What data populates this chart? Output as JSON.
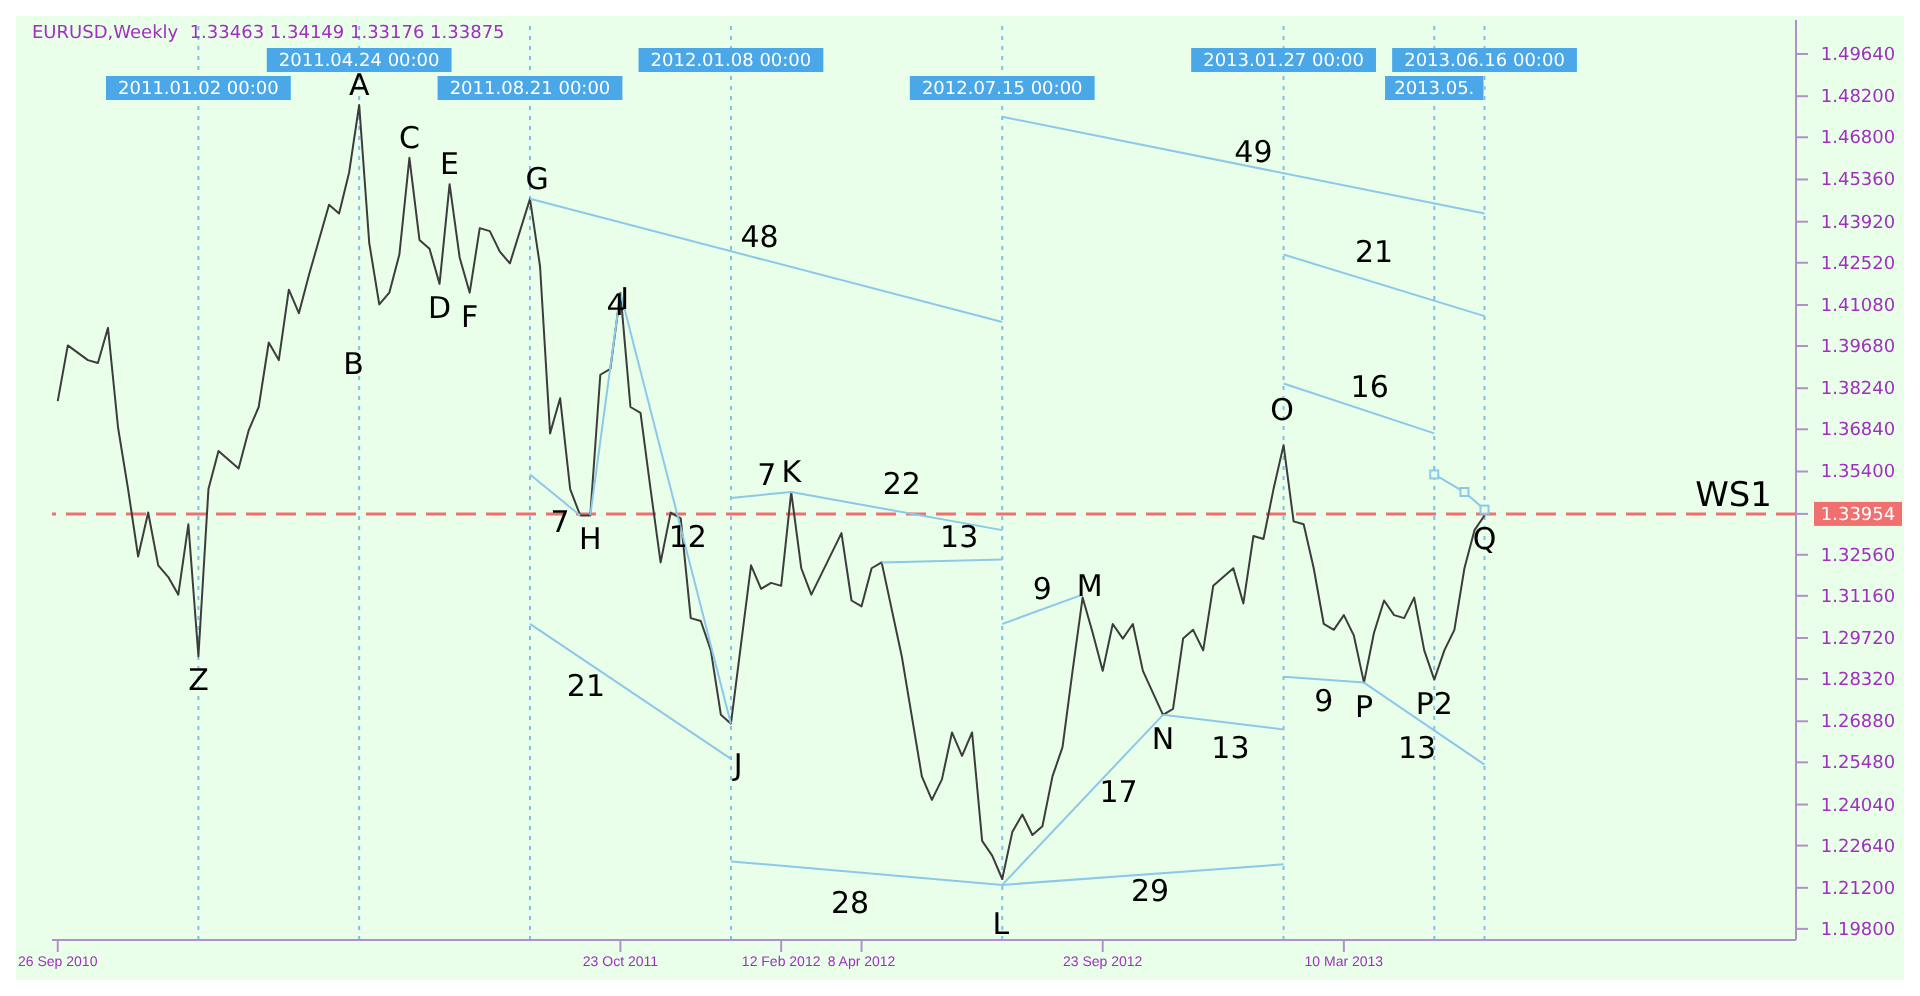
{
  "chart_data": {
    "type": "line",
    "title": "EURUSD,Weekly  1.33463 1.34149 1.33176 1.33875",
    "xlim": [
      "2010-09-22",
      "2014-01-19"
    ],
    "xticks": [
      {
        "value": "2010-09-26",
        "label": "26 Sep 2010"
      },
      {
        "value": "2011-10-23",
        "label": "23 Oct 2011"
      },
      {
        "value": "2012-02-12",
        "label": "12 Feb 2012"
      },
      {
        "value": "2012-04-08",
        "label": "8 Apr 2012"
      },
      {
        "value": "2012-09-23",
        "label": "23 Sep 2012"
      },
      {
        "value": "2013-03-10",
        "label": "10 Mar 2013"
      }
    ],
    "ylim": [
      1.1942,
      1.508
    ],
    "yticks": [
      {
        "value": 1.4964,
        "label": "1.49640"
      },
      {
        "value": 1.482,
        "label": "1.48200"
      },
      {
        "value": 1.468,
        "label": "1.46800"
      },
      {
        "value": 1.4536,
        "label": "1.45360"
      },
      {
        "value": 1.4392,
        "label": "1.43920"
      },
      {
        "value": 1.4252,
        "label": "1.42520"
      },
      {
        "value": 1.4108,
        "label": "1.41080"
      },
      {
        "value": 1.3968,
        "label": "1.39680"
      },
      {
        "value": 1.3824,
        "label": "1.38240"
      },
      {
        "value": 1.3684,
        "label": "1.36840"
      },
      {
        "value": 1.354,
        "label": "1.35400"
      },
      {
        "value": 1.33954,
        "label": "1.33954"
      },
      {
        "value": 1.3256,
        "label": "1.32560"
      },
      {
        "value": 1.3116,
        "label": "1.31160"
      },
      {
        "value": 1.2972,
        "label": "1.29720"
      },
      {
        "value": 1.2832,
        "label": "1.28320"
      },
      {
        "value": 1.2688,
        "label": "1.26880"
      },
      {
        "value": 1.2548,
        "label": "1.25480"
      },
      {
        "value": 1.2404,
        "label": "1.24040"
      },
      {
        "value": 1.2264,
        "label": "1.22640"
      },
      {
        "value": 1.212,
        "label": "1.21200"
      },
      {
        "value": 1.198,
        "label": "1.19800"
      }
    ],
    "series": [
      {
        "color": "#3c3c3c",
        "x": [
          "2010-09-26",
          "2010-10-03",
          "2010-10-17",
          "2010-10-24",
          "2010-10-31",
          "2010-11-07",
          "2010-11-14",
          "2010-11-21",
          "2010-11-28",
          "2010-12-05",
          "2010-12-12",
          "2010-12-19",
          "2010-12-26",
          "2011-01-02",
          "2011-01-09",
          "2011-01-16",
          "2011-01-30",
          "2011-02-06",
          "2011-02-13",
          "2011-02-20",
          "2011-02-27",
          "2011-03-06",
          "2011-03-13",
          "2011-03-20",
          "2011-04-03",
          "2011-04-10",
          "2011-04-17",
          "2011-04-24",
          "2011-05-01",
          "2011-05-08",
          "2011-05-15",
          "2011-05-22",
          "2011-05-29",
          "2011-06-05",
          "2011-06-12",
          "2011-06-19",
          "2011-06-26",
          "2011-07-03",
          "2011-07-10",
          "2011-07-17",
          "2011-07-24",
          "2011-07-31",
          "2011-08-07",
          "2011-08-21",
          "2011-08-28",
          "2011-09-04",
          "2011-09-11",
          "2011-09-18",
          "2011-09-25",
          "2011-10-02",
          "2011-10-09",
          "2011-10-16",
          "2011-10-23",
          "2011-10-30",
          "2011-11-06",
          "2011-11-13",
          "2011-11-20",
          "2011-11-27",
          "2011-12-04",
          "2011-12-11",
          "2011-12-18",
          "2011-12-25",
          "2012-01-01",
          "2012-01-08",
          "2012-01-22",
          "2012-01-29",
          "2012-02-05",
          "2012-02-12",
          "2012-02-19",
          "2012-02-26",
          "2012-03-04",
          "2012-03-25",
          "2012-04-01",
          "2012-04-08",
          "2012-04-15",
          "2012-04-22",
          "2012-05-06",
          "2012-05-20",
          "2012-05-27",
          "2012-06-03",
          "2012-06-10",
          "2012-06-17",
          "2012-06-24",
          "2012-07-01",
          "2012-07-08",
          "2012-07-15",
          "2012-07-22",
          "2012-07-29",
          "2012-08-05",
          "2012-08-12",
          "2012-08-19",
          "2012-08-26",
          "2012-09-02",
          "2012-09-09",
          "2012-09-16",
          "2012-09-23",
          "2012-09-30",
          "2012-10-07",
          "2012-10-14",
          "2012-10-21",
          "2012-11-04",
          "2012-11-11",
          "2012-11-18",
          "2012-11-25",
          "2012-12-02",
          "2012-12-09",
          "2012-12-23",
          "2012-12-30",
          "2013-01-06",
          "2013-01-13",
          "2013-01-20",
          "2013-01-27",
          "2013-02-03",
          "2013-02-10",
          "2013-02-17",
          "2013-02-24",
          "2013-03-03",
          "2013-03-10",
          "2013-03-17",
          "2013-03-24",
          "2013-03-31",
          "2013-04-07",
          "2013-04-14",
          "2013-04-21",
          "2013-04-28",
          "2013-05-05",
          "2013-05-12",
          "2013-05-19",
          "2013-05-26",
          "2013-06-02",
          "2013-06-09",
          "2013-06-16"
        ],
        "values": [
          1.378,
          1.397,
          1.392,
          1.391,
          1.403,
          1.369,
          1.348,
          1.325,
          1.34,
          1.322,
          1.318,
          1.312,
          1.336,
          1.291,
          1.348,
          1.361,
          1.355,
          1.368,
          1.376,
          1.398,
          1.392,
          1.416,
          1.408,
          1.421,
          1.445,
          1.442,
          1.456,
          1.479,
          1.432,
          1.411,
          1.415,
          1.428,
          1.461,
          1.433,
          1.43,
          1.418,
          1.452,
          1.427,
          1.415,
          1.437,
          1.436,
          1.429,
          1.425,
          1.447,
          1.424,
          1.367,
          1.379,
          1.348,
          1.339,
          1.339,
          1.387,
          1.389,
          1.415,
          1.376,
          1.374,
          1.348,
          1.323,
          1.34,
          1.338,
          1.304,
          1.303,
          1.293,
          1.271,
          1.268,
          1.322,
          1.314,
          1.316,
          1.315,
          1.347,
          1.321,
          1.312,
          1.333,
          1.31,
          1.308,
          1.321,
          1.323,
          1.291,
          1.25,
          1.242,
          1.249,
          1.265,
          1.257,
          1.265,
          1.228,
          1.223,
          1.215,
          1.231,
          1.237,
          1.23,
          1.233,
          1.25,
          1.26,
          1.286,
          1.311,
          1.299,
          1.286,
          1.302,
          1.297,
          1.302,
          1.286,
          1.271,
          1.273,
          1.297,
          1.3,
          1.293,
          1.315,
          1.321,
          1.309,
          1.332,
          1.331,
          1.348,
          1.363,
          1.337,
          1.336,
          1.321,
          1.302,
          1.3,
          1.305,
          1.298,
          1.282,
          1.299,
          1.31,
          1.305,
          1.304,
          1.311,
          1.293,
          1.283,
          1.293,
          1.3,
          1.321,
          1.334,
          1.339
        ]
      },
      {
        "color": "#8cc8e8",
        "x": [
          "2011-08-21",
          "2012-07-15"
        ],
        "values": [
          1.447,
          1.405
        ]
      },
      {
        "color": "#8cc8e8",
        "x": [
          "2012-07-15",
          "2013-06-16"
        ],
        "values": [
          1.475,
          1.442
        ]
      },
      {
        "color": "#8cc8e8",
        "x": [
          "2013-01-27",
          "2013-06-16"
        ],
        "values": [
          1.428,
          1.407
        ]
      },
      {
        "color": "#8cc8e8",
        "x": [
          "2013-01-27",
          "2013-05-12"
        ],
        "values": [
          1.384,
          1.367
        ]
      },
      {
        "color": "#8cc8e8",
        "marker": "square",
        "x": [
          "2013-05-12",
          "2013-06-02",
          "2013-06-16"
        ],
        "values": [
          1.353,
          1.347,
          1.341
        ]
      },
      {
        "color": "#8cc8e8",
        "x": [
          "2011-08-21",
          "2012-01-08"
        ],
        "values": [
          1.302,
          1.256
        ]
      },
      {
        "color": "#8cc8e8",
        "x": [
          "2011-08-21",
          "2011-09-25"
        ],
        "values": [
          1.353,
          1.339
        ]
      },
      {
        "color": "#8cc8e8",
        "x": [
          "2011-10-02",
          "2011-10-23"
        ],
        "values": [
          1.339,
          1.415
        ]
      },
      {
        "color": "#8cc8e8",
        "x": [
          "2011-10-23",
          "2012-01-08"
        ],
        "values": [
          1.415,
          1.268
        ]
      },
      {
        "color": "#8cc8e8",
        "x": [
          "2012-01-08",
          "2012-02-19",
          "2012-07-15"
        ],
        "values": [
          1.345,
          1.347,
          1.334
        ]
      },
      {
        "color": "#8cc8e8",
        "x": [
          "2012-04-22",
          "2012-07-15"
        ],
        "values": [
          1.323,
          1.324
        ]
      },
      {
        "color": "#8cc8e8",
        "x": [
          "2012-07-15",
          "2012-09-09"
        ],
        "values": [
          1.302,
          1.312
        ]
      },
      {
        "color": "#8cc8e8",
        "x": [
          "2012-01-08",
          "2012-07-15",
          "2013-01-27"
        ],
        "values": [
          1.221,
          1.213,
          1.22
        ]
      },
      {
        "color": "#8cc8e8",
        "x": [
          "2012-07-15",
          "2012-11-04"
        ],
        "values": [
          1.213,
          1.271
        ]
      },
      {
        "color": "#8cc8e8",
        "x": [
          "2012-11-04",
          "2013-01-27"
        ],
        "values": [
          1.271,
          1.266
        ]
      },
      {
        "color": "#8cc8e8",
        "x": [
          "2013-01-27",
          "2013-03-24"
        ],
        "values": [
          1.284,
          1.282
        ]
      },
      {
        "color": "#8cc8e8",
        "x": [
          "2013-03-24",
          "2013-06-16"
        ],
        "values": [
          1.282,
          1.254
        ]
      }
    ],
    "ref_lines": [
      {
        "axis": "y",
        "value": 1.33954,
        "label": "WS1",
        "color": "#f07070",
        "line_style": "dashed"
      },
      {
        "axis": "x",
        "value": "2011-01-02",
        "label": "2011.01.02 00:00",
        "color": "#7fbfe6",
        "line_style": "dotted"
      },
      {
        "axis": "x",
        "value": "2011-04-24",
        "label": "2011.04.24 00:00",
        "color": "#7fbfe6",
        "line_style": "dotted"
      },
      {
        "axis": "x",
        "value": "2011-08-21",
        "label": "2011.08.21 00:00",
        "color": "#7fbfe6",
        "line_style": "dotted"
      },
      {
        "axis": "x",
        "value": "2012-01-08",
        "label": "2012.01.08 00:00",
        "color": "#7fbfe6",
        "line_style": "dotted"
      },
      {
        "axis": "x",
        "value": "2012-07-15",
        "label": "2012.07.15 00:00",
        "color": "#7fbfe6",
        "line_style": "dotted"
      },
      {
        "axis": "x",
        "value": "2013-01-27",
        "label": "2013.01.27 00:00",
        "color": "#7fbfe6",
        "line_style": "dotted"
      },
      {
        "axis": "x",
        "value": "2013-05-12",
        "label": "2013.05.",
        "color": "#7fbfe6",
        "line_style": "dotted"
      },
      {
        "axis": "x",
        "value": "2013-06-16",
        "label": "2013.06.16 00:00",
        "color": "#7fbfe6",
        "line_style": "dotted"
      }
    ],
    "annotations": [
      {
        "text": "Z",
        "x": "2011-01-02",
        "y": 1.291
      },
      {
        "text": "A",
        "x": "2011-04-24",
        "y": 1.479
      },
      {
        "text": "B",
        "x": "2011-04-20",
        "y": 1.399
      },
      {
        "text": "C",
        "x": "2011-05-29",
        "y": 1.461
      },
      {
        "text": "D",
        "x": "2011-06-19",
        "y": 1.418
      },
      {
        "text": "E",
        "x": "2011-06-26",
        "y": 1.452
      },
      {
        "text": "F",
        "x": "2011-07-10",
        "y": 1.415
      },
      {
        "text": "G",
        "x": "2011-08-26",
        "y": 1.447
      },
      {
        "text": "H",
        "x": "2011-10-02",
        "y": 1.339
      },
      {
        "text": "I",
        "x": "2011-10-26",
        "y": 1.406
      },
      {
        "text": "J",
        "x": "2012-01-13",
        "y": 1.262
      },
      {
        "text": "K",
        "x": "2012-02-19",
        "y": 1.347
      },
      {
        "text": "L",
        "x": "2012-07-14",
        "y": 1.208
      },
      {
        "text": "M",
        "x": "2012-09-14",
        "y": 1.308
      },
      {
        "text": "N",
        "x": "2012-11-04",
        "y": 1.271
      },
      {
        "text": "O",
        "x": "2013-01-26",
        "y": 1.368
      },
      {
        "text": "P",
        "x": "2013-03-24",
        "y": 1.282
      },
      {
        "text": "P2",
        "x": "2013-05-12",
        "y": 1.283
      },
      {
        "text": "Q",
        "x": "2013-06-16",
        "y": 1.339
      },
      {
        "text": "48",
        "x": "2012-01-28",
        "y": 1.427
      },
      {
        "text": "49",
        "x": "2013-01-06",
        "y": 1.456
      },
      {
        "text": "21",
        "x": "2013-03-31",
        "y": 1.422
      },
      {
        "text": "16",
        "x": "2013-03-28",
        "y": 1.376
      },
      {
        "text": "21",
        "x": "2011-09-29",
        "y": 1.289
      },
      {
        "text": "7",
        "x": "2011-09-11",
        "y": 1.345
      },
      {
        "text": "4",
        "x": "2011-10-20",
        "y": 1.404
      },
      {
        "text": "12",
        "x": "2011-12-09",
        "y": 1.325
      },
      {
        "text": "7",
        "x": "2012-02-02",
        "y": 1.346
      },
      {
        "text": "22",
        "x": "2012-05-06",
        "y": 1.343
      },
      {
        "text": "13",
        "x": "2012-06-15",
        "y": 1.325
      },
      {
        "text": "9",
        "x": "2012-08-12",
        "y": 1.307
      },
      {
        "text": "28",
        "x": "2012-03-31",
        "y": 1.215
      },
      {
        "text": "29",
        "x": "2012-10-26",
        "y": 1.219
      },
      {
        "text": "17",
        "x": "2012-10-04",
        "y": 1.253
      },
      {
        "text": "13",
        "x": "2012-12-21",
        "y": 1.268
      },
      {
        "text": "9",
        "x": "2013-02-24",
        "y": 1.284
      },
      {
        "text": "13",
        "x": "2013-04-30",
        "y": 1.268
      }
    ]
  }
}
